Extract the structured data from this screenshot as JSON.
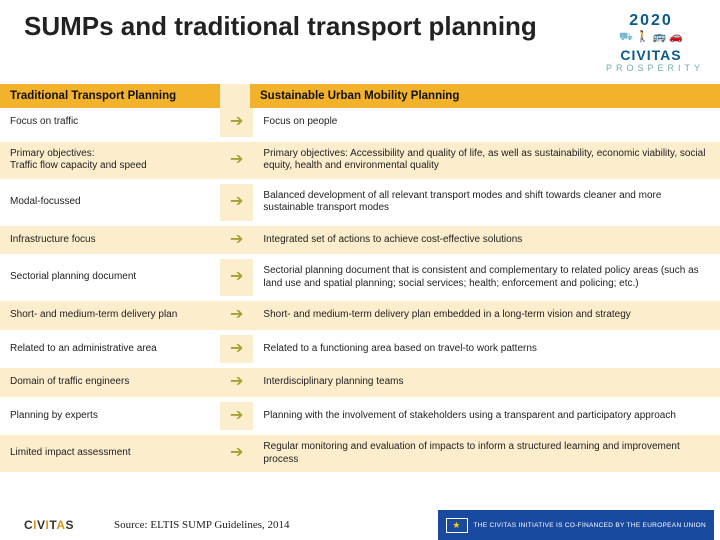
{
  "title": "SUMPs and traditional transport planning",
  "logo": {
    "year": "2020",
    "brand": "CIVITAS",
    "sub": "PROSPERITY"
  },
  "columns": {
    "left": "Traditional Transport Planning",
    "right": "Sustainable Urban Mobility Planning"
  },
  "rows": [
    {
      "left": "Focus on traffic",
      "right": "Focus on people"
    },
    {
      "left": "Primary objectives:\nTraffic flow capacity and speed",
      "right": "Primary objectives: Accessibility and quality of life, as well as sustainability, economic viability, social equity, health and  environmental quality"
    },
    {
      "left": "Modal-focussed",
      "right": "Balanced development of all relevant transport modes and shift towards cleaner and more sustainable transport modes"
    },
    {
      "left": "Infrastructure focus",
      "right": "Integrated set of actions to achieve cost-effective solutions"
    },
    {
      "left": "Sectorial planning document",
      "right": "Sectorial planning document that is consistent and complementary to related policy areas (such as land use and spatial planning; social services; health; enforcement and policing; etc.)"
    },
    {
      "left": "Short- and medium-term delivery plan",
      "right": "Short- and medium-term delivery plan embedded in a long-term vision and strategy"
    },
    {
      "left": "Related to an administrative area",
      "right": "Related to a functioning area based on travel-to work patterns"
    },
    {
      "left": "Domain of traffic engineers",
      "right": "Interdisciplinary planning teams"
    },
    {
      "left": "Planning by experts",
      "right": "Planning with the involvement of stakeholders using a transparent and participatory approach"
    },
    {
      "left": "Limited impact assessment",
      "right": "Regular monitoring and evaluation of impacts to inform a structured learning and improvement process"
    }
  ],
  "footer": {
    "brand": "CIVITAS",
    "source": "Source: ELTIS SUMP Guidelines, 2014",
    "eu": "THE CIVITAS INITIATIVE IS CO-FINANCED BY THE EUROPEAN UNION"
  },
  "style": {
    "header_bg": "#f3b22b",
    "stripe_bg": "#fcedcd",
    "arrow_color": "#9fa334",
    "title_fontsize": 26,
    "body_fontsize": 10,
    "header_fontsize": 11.5
  }
}
